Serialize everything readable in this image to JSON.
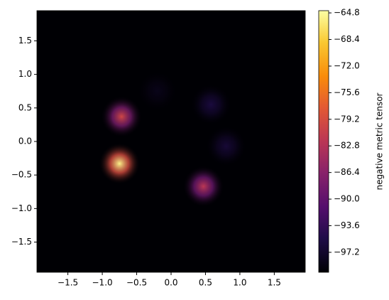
{
  "chart_data": {
    "type": "heatmap",
    "colorbar_label": "negative metric tensor",
    "colormap": "inferno",
    "xlim": [
      -1.95,
      1.95
    ],
    "ylim": [
      -1.95,
      1.95
    ],
    "clim": [
      -99.9,
      -64.5
    ],
    "xticks": [
      {
        "value": -1.5,
        "label": "−1.5"
      },
      {
        "value": -1.0,
        "label": "−1.0"
      },
      {
        "value": -0.5,
        "label": "−0.5"
      },
      {
        "value": 0,
        "label": "0.0"
      },
      {
        "value": 0.5,
        "label": "0.5"
      },
      {
        "value": 1.0,
        "label": "1.0"
      },
      {
        "value": 1.5,
        "label": "1.5"
      }
    ],
    "yticks": [
      {
        "value": -1.5,
        "label": "−1.5"
      },
      {
        "value": -1.0,
        "label": "−1.0"
      },
      {
        "value": -0.5,
        "label": "−0.5"
      },
      {
        "value": 0,
        "label": "0.0"
      },
      {
        "value": 0.5,
        "label": "0.5"
      },
      {
        "value": 1.0,
        "label": "1.0"
      },
      {
        "value": 1.5,
        "label": "1.5"
      }
    ],
    "cticks": [
      {
        "value": -64.8,
        "label": "−64.8"
      },
      {
        "value": -68.4,
        "label": "−68.4"
      },
      {
        "value": -72.0,
        "label": "−72.0"
      },
      {
        "value": -75.6,
        "label": "−75.6"
      },
      {
        "value": -79.2,
        "label": "−79.2"
      },
      {
        "value": -82.8,
        "label": "−82.8"
      },
      {
        "value": -86.4,
        "label": "−86.4"
      },
      {
        "value": -90.0,
        "label": "−90.0"
      },
      {
        "value": -93.6,
        "label": "−93.6"
      },
      {
        "value": -97.2,
        "label": "−97.2"
      }
    ],
    "peaks": {
      "x": [
        -0.75,
        -0.72,
        0.47,
        0.58,
        0.8,
        -0.2
      ],
      "y": [
        -0.33,
        0.37,
        -0.67,
        0.55,
        -0.07,
        0.75
      ],
      "values": [
        -65.5,
        -80,
        -82,
        -96,
        -96.5,
        -98.5
      ]
    }
  }
}
